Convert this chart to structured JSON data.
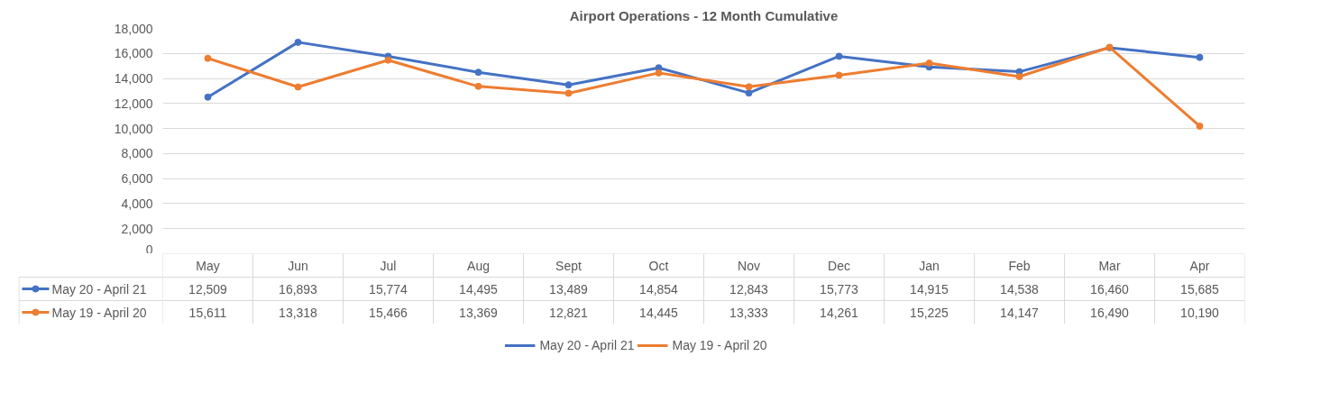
{
  "chart_data": {
    "type": "line",
    "title": "Airport Operations - 12 Month Cumulative",
    "categories": [
      "May",
      "Jun",
      "Jul",
      "Aug",
      "Sept",
      "Oct",
      "Nov",
      "Dec",
      "Jan",
      "Feb",
      "Mar",
      "Apr"
    ],
    "series": [
      {
        "name": "May 20 - April 21",
        "color": "#4472c4",
        "values": [
          12509,
          16893,
          15774,
          14495,
          13489,
          14854,
          12843,
          15773,
          14915,
          14538,
          16460,
          15685
        ],
        "value_labels": [
          "12,509",
          "16,893",
          "15,774",
          "14,495",
          "13,489",
          "14,854",
          "12,843",
          "15,773",
          "14,915",
          "14,538",
          "16,460",
          "15,685"
        ]
      },
      {
        "name": "May 19 - April 20",
        "color": "#ed7d31",
        "values": [
          15611,
          13318,
          15466,
          13369,
          12821,
          14445,
          13333,
          14261,
          15225,
          14147,
          16490,
          10190
        ],
        "value_labels": [
          "15,611",
          "13,318",
          "15,466",
          "13,369",
          "12,821",
          "14,445",
          "13,333",
          "14,261",
          "15,225",
          "14,147",
          "16,490",
          "10,190"
        ]
      }
    ],
    "ylim": [
      0,
      18000
    ],
    "yticks": [
      {
        "value": 0,
        "label": "0"
      },
      {
        "value": 2000,
        "label": "2,000"
      },
      {
        "value": 4000,
        "label": "4,000"
      },
      {
        "value": 6000,
        "label": "6,000"
      },
      {
        "value": 8000,
        "label": "8,000"
      },
      {
        "value": 10000,
        "label": "10,000"
      },
      {
        "value": 12000,
        "label": "12,000"
      },
      {
        "value": 14000,
        "label": "14,000"
      },
      {
        "value": 16000,
        "label": "16,000"
      },
      {
        "value": 18000,
        "label": "18,000"
      }
    ],
    "grid": "y",
    "legend": "bottom",
    "marker": "circle"
  }
}
